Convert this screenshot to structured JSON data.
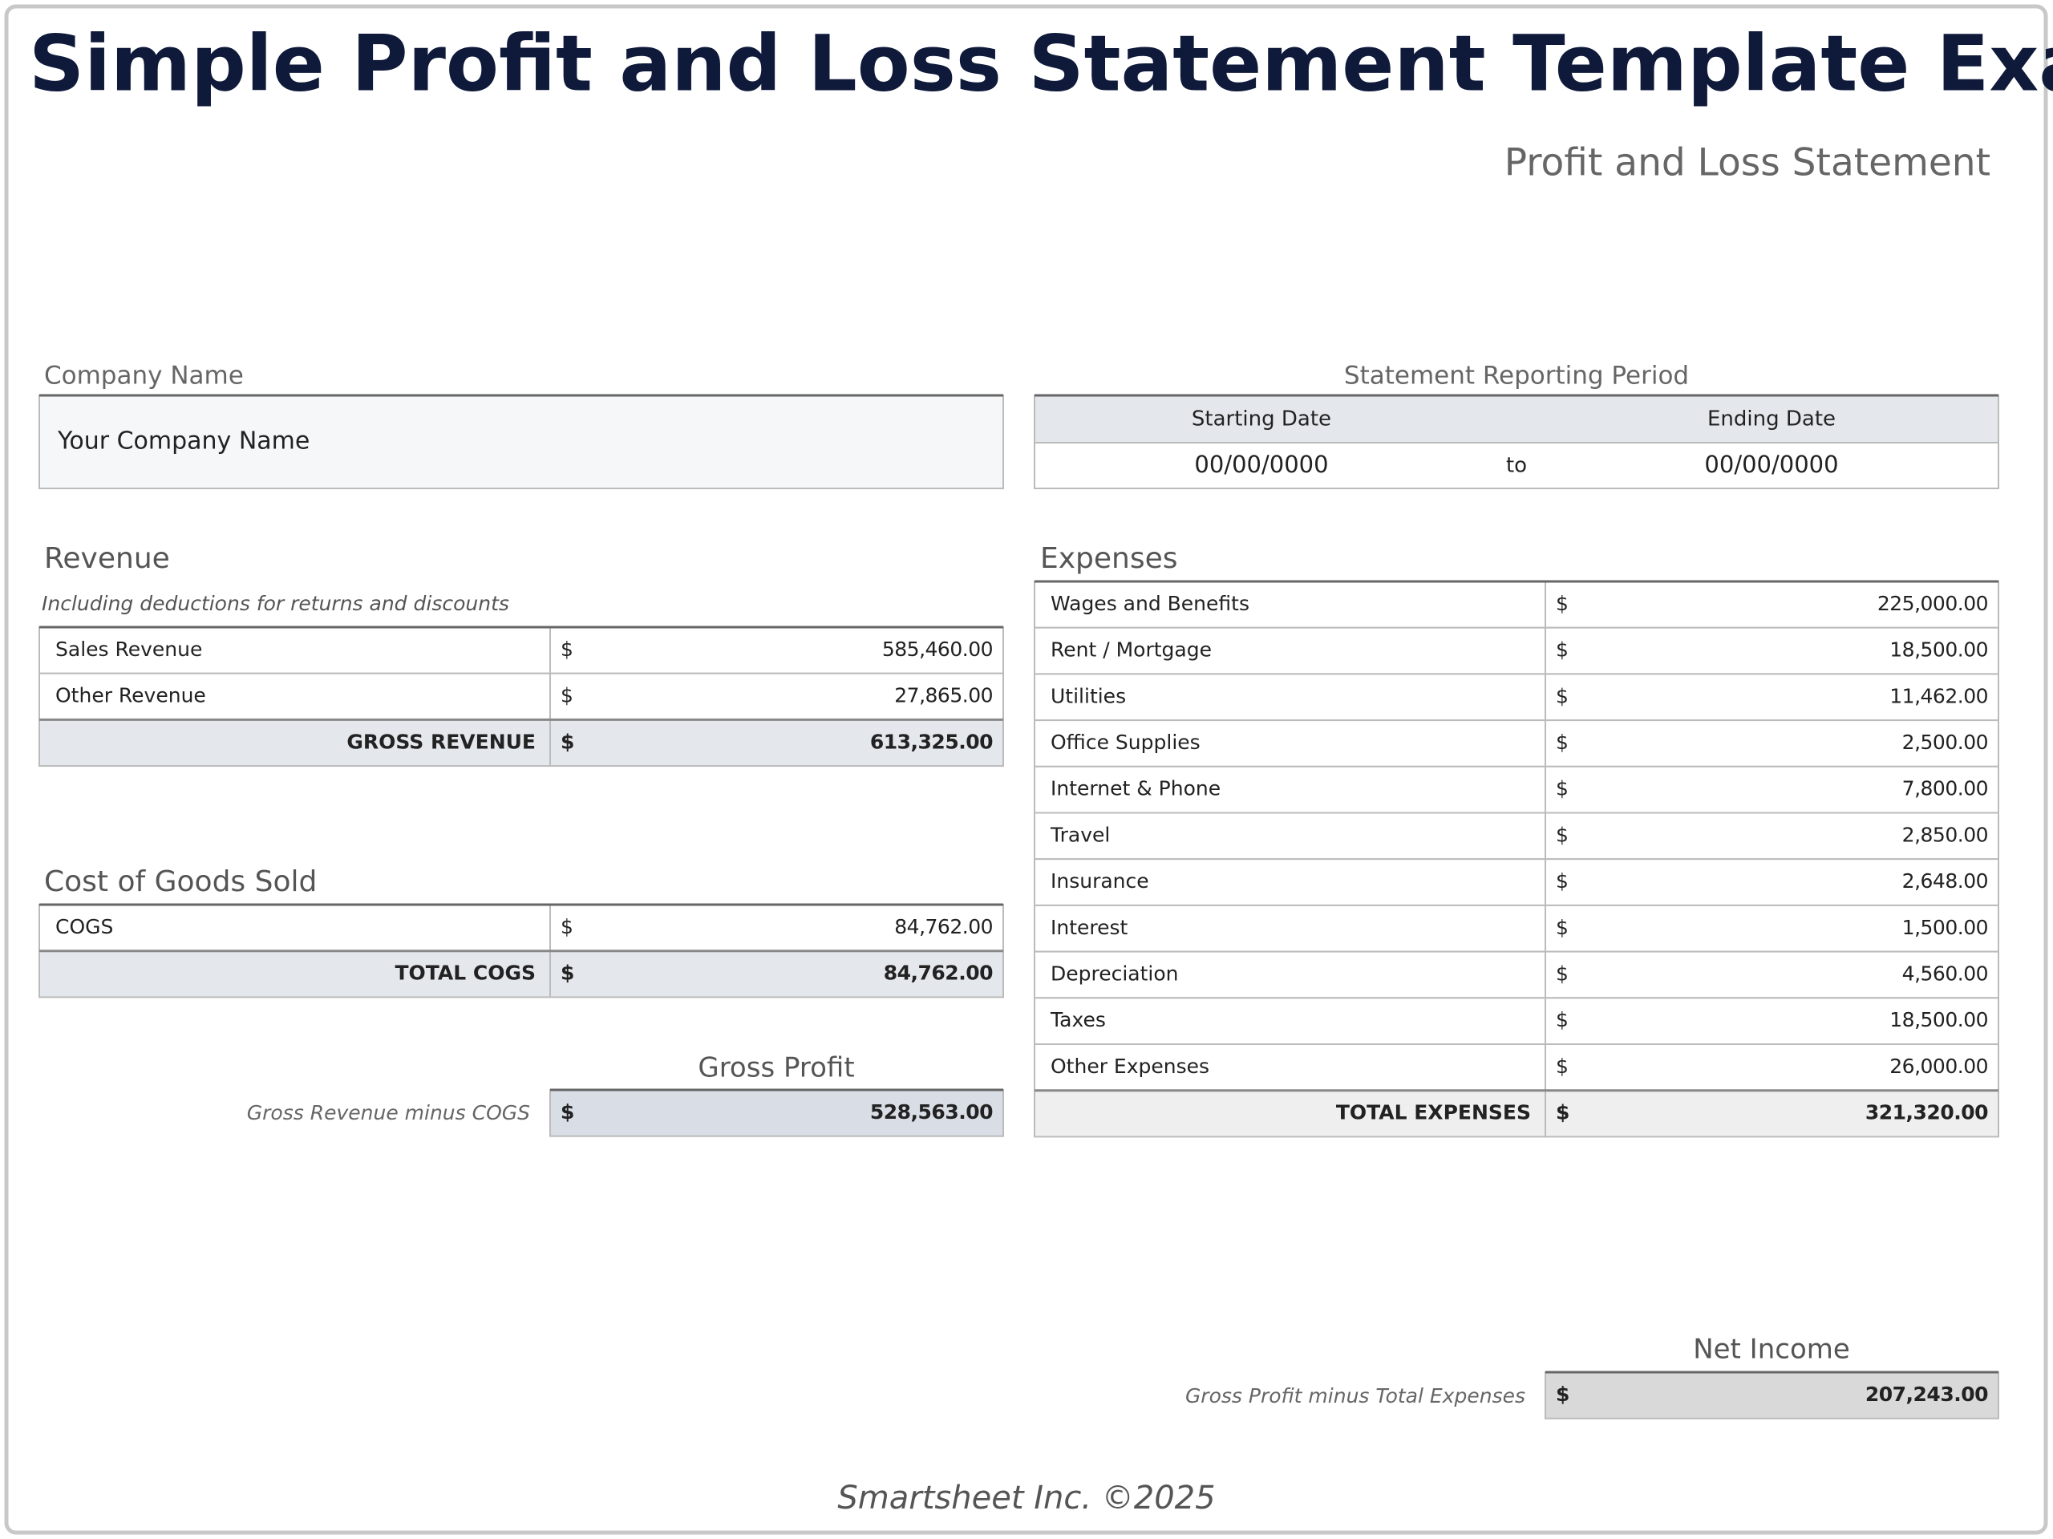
{
  "header": {
    "title": "Simple Profit and Loss Statement Template Example",
    "subtitle": "Profit and Loss Statement"
  },
  "currency": "$",
  "company": {
    "label": "Company Name",
    "value": "Your Company Name"
  },
  "period": {
    "label": "Statement Reporting Period",
    "start_label": "Starting Date",
    "end_label": "Ending Date",
    "start": "00/00/0000",
    "separator": "to",
    "end": "00/00/0000"
  },
  "revenue": {
    "label": "Revenue",
    "note": "Including deductions for returns and discounts",
    "rows": [
      [
        "Sales Revenue",
        "585,460.00"
      ],
      [
        "Other Revenue",
        "27,865.00"
      ]
    ],
    "total": [
      "GROSS REVENUE",
      "613,325.00"
    ]
  },
  "cogs": {
    "label": "Cost of Goods Sold",
    "rows": [
      [
        "COGS",
        "84,762.00"
      ]
    ],
    "total": [
      "TOTAL COGS",
      "84,762.00"
    ]
  },
  "gross_profit": {
    "label": "Gross Profit",
    "note": "Gross Revenue minus COGS",
    "value": "528,563.00"
  },
  "expenses": {
    "label": "Expenses",
    "rows": [
      [
        "Wages and Benefits",
        "225,000.00"
      ],
      [
        "Rent / Mortgage",
        "18,500.00"
      ],
      [
        "Utilities",
        "11,462.00"
      ],
      [
        "Office Supplies",
        "2,500.00"
      ],
      [
        "Internet & Phone",
        "7,800.00"
      ],
      [
        "Travel",
        "2,850.00"
      ],
      [
        "Insurance",
        "2,648.00"
      ],
      [
        "Interest",
        "1,500.00"
      ],
      [
        "Depreciation",
        "4,560.00"
      ],
      [
        "Taxes",
        "18,500.00"
      ],
      [
        "Other Expenses",
        "26,000.00"
      ]
    ],
    "total": [
      "TOTAL EXPENSES",
      "321,320.00"
    ]
  },
  "net_income": {
    "label": "Net Income",
    "note": "Gross Profit minus Total Expenses",
    "value": "207,243.00"
  },
  "footer": "Smartsheet Inc. ©2025"
}
